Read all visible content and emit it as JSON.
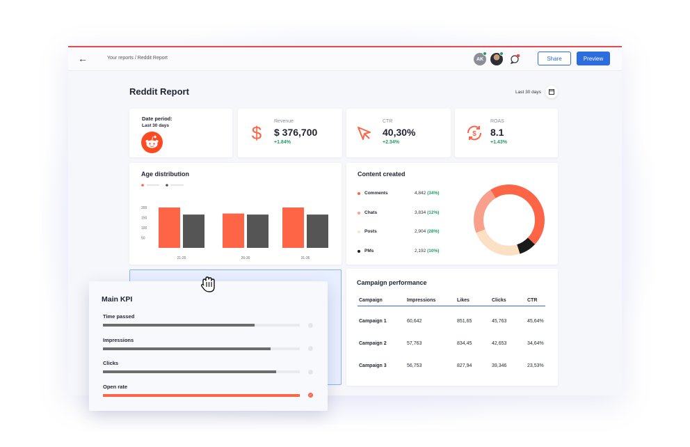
{
  "header": {
    "breadcrumb": "Your reports / Reddit Report",
    "avatar_initials": "AK",
    "share_label": "Share",
    "preview_label": "Preview"
  },
  "report": {
    "title": "Reddit Report",
    "date_range": "Last 30 days"
  },
  "kpis": {
    "date_period_label": "Date period:",
    "date_period_value": "Last 30 days",
    "revenue": {
      "label": "Revenue",
      "value": "$ 376,700",
      "delta": "+1.84%"
    },
    "ctr": {
      "label": "CTR",
      "value": "40,30%",
      "delta": "+2.34%"
    },
    "roas": {
      "label": "ROAS",
      "value": "8.1",
      "delta": "+1.43%"
    }
  },
  "age_distribution": {
    "title": "Age distribution"
  },
  "content_created": {
    "title": "Content created",
    "items": [
      {
        "name": "Comments",
        "count": "4,842",
        "pct": "(34%)",
        "color": "#fe6446"
      },
      {
        "name": "Chats",
        "count": "3,834",
        "pct": "(12%)",
        "color": "#f8a08c"
      },
      {
        "name": "Posts",
        "count": "2,904",
        "pct": "(28%)",
        "color": "#fce0c4"
      },
      {
        "name": "PMs",
        "count": "2,192",
        "pct": "(10%)",
        "color": "#1a1a1a"
      }
    ]
  },
  "campaign_performance": {
    "title": "Campaign performance",
    "columns": [
      "Campaign",
      "Impressions",
      "Likes",
      "Clicks",
      "CTR"
    ],
    "rows": [
      [
        "Campaign 1",
        "60,642",
        "851,65",
        "45,763",
        "45,64%"
      ],
      [
        "Campaign 2",
        "57,763",
        "834,45",
        "42,653",
        "34,64%"
      ],
      [
        "Campaign 3",
        "56,753",
        "827,94",
        "39,346",
        "23,53%"
      ]
    ]
  },
  "main_kpi": {
    "title": "Main KPI",
    "items": [
      {
        "label": "Time passed",
        "progress": 0.77,
        "color": "#6c6c6c",
        "done": false
      },
      {
        "label": "Impressions",
        "progress": 0.85,
        "color": "#6c6c6c",
        "done": false
      },
      {
        "label": "Clicks",
        "progress": 0.88,
        "color": "#6c6c6c",
        "done": false
      },
      {
        "label": "Open rate",
        "progress": 1.0,
        "color": "#fe6446",
        "done": true
      }
    ]
  },
  "chart_data": {
    "type": "bar",
    "categories": [
      "21-25",
      "26-30",
      "31-35"
    ],
    "series": [
      {
        "values": [
          200,
          170,
          200
        ],
        "color": "#fe6446"
      },
      {
        "values": [
          165,
          165,
          165
        ],
        "color": "#555555"
      }
    ],
    "ylim": [
      0,
      200
    ],
    "yticks": [
      "200",
      "150",
      "100",
      "50"
    ],
    "legend": "top-left"
  },
  "colors": {
    "accent": "#2d6cdf",
    "brand": "#fe6446",
    "positive": "#1e9c61"
  }
}
